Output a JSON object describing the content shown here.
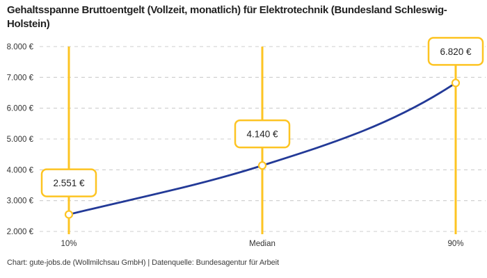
{
  "title": "Gehaltsspanne Bruttoentgelt (Vollzeit, monatlich) für Elektrotechnik (Bundesland Schleswig-Holstein)",
  "footer": "Chart: gute-jobs.de (Wollmilchsau GmbH) | Datenquelle: Bundesagentur für Arbeit",
  "colors": {
    "accent_yellow": "#fdc422",
    "line_blue": "#233a97",
    "grid_gray": "#cccccc",
    "axis_text": "#333333",
    "label_text": "#222222",
    "background": "#ffffff"
  },
  "chart_data": {
    "type": "line",
    "title": "Gehaltsspanne Bruttoentgelt (Vollzeit, monatlich) für Elektrotechnik (Bundesland Schleswig-Holstein)",
    "categories": [
      "10%",
      "Median",
      "90%"
    ],
    "values": [
      2551,
      4140,
      6820
    ],
    "value_labels": [
      "2.551 €",
      "4.140 €",
      "6.820 €"
    ],
    "series": [
      {
        "name": "Bruttoentgelt",
        "values": [
          2551,
          4140,
          6820
        ]
      }
    ],
    "xlabel": "",
    "ylabel": "",
    "ylim": [
      2000,
      8000
    ],
    "y_tick_values": [
      8000,
      7000,
      6000,
      5000,
      4000,
      3000,
      2000
    ],
    "y_tick_labels": [
      "8.000 €",
      "7.000 €",
      "6.000 €",
      "5.000 €",
      "4.000 €",
      "3.000 €",
      "2.000 €"
    ],
    "grid": "horizontal-dashed",
    "legend_position": "none",
    "marker": "open-circle",
    "vertical_guides": true
  }
}
